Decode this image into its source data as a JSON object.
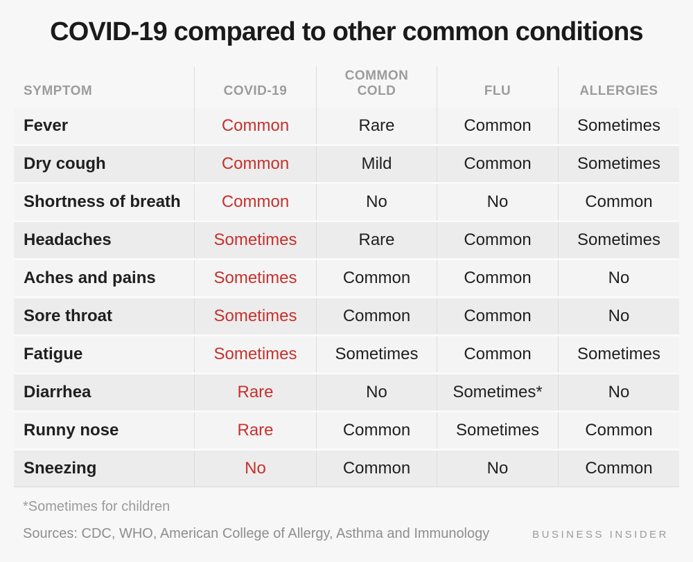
{
  "title": "COVID-19 compared to other common conditions",
  "colors": {
    "covid_accent": "#c5312d"
  },
  "chart_data": {
    "type": "table",
    "title": "COVID-19 compared to other common conditions",
    "columns": [
      "SYMPTOM",
      "COVID-19",
      "COMMON COLD",
      "FLU",
      "ALLERGIES"
    ],
    "rows": [
      [
        "Fever",
        "Common",
        "Rare",
        "Common",
        "Sometimes"
      ],
      [
        "Dry cough",
        "Common",
        "Mild",
        "Common",
        "Sometimes"
      ],
      [
        "Shortness of breath",
        "Common",
        "No",
        "No",
        "Common"
      ],
      [
        "Headaches",
        "Sometimes",
        "Rare",
        "Common",
        "Sometimes"
      ],
      [
        "Aches and pains",
        "Sometimes",
        "Common",
        "Common",
        "No"
      ],
      [
        "Sore throat",
        "Sometimes",
        "Common",
        "Common",
        "No"
      ],
      [
        "Fatigue",
        "Sometimes",
        "Sometimes",
        "Common",
        "Sometimes"
      ],
      [
        "Diarrhea",
        "Rare",
        "No",
        "Sometimes*",
        "No"
      ],
      [
        "Runny nose",
        "Rare",
        "Common",
        "Sometimes",
        "Common"
      ],
      [
        "Sneezing",
        "No",
        "Common",
        "No",
        "Common"
      ]
    ],
    "covid_column_color": "#c5312d",
    "layout": "alternating row shading, vertical column dividers, COVID-19 column values in red"
  },
  "footnote": "*Sometimes for children",
  "sources": {
    "label": "Sources:",
    "text": "CDC, WHO,  American College of Allergy, Asthma and Immunology"
  },
  "brand": "BUSINESS INSIDER"
}
